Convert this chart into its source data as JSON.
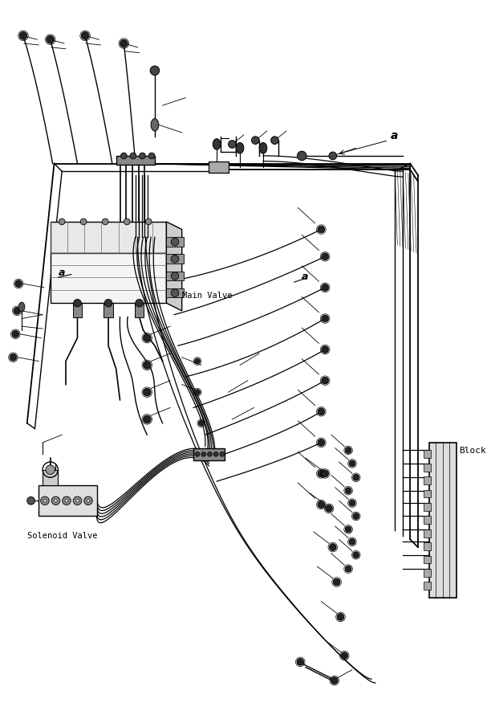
{
  "bg_color": "#ffffff",
  "line_color": "#000000",
  "fig_width": 6.07,
  "fig_height": 8.75,
  "dpi": 100,
  "label_main_valve": "Main Valve",
  "label_solenoid_valve": "Solenoid Valve",
  "label_block": "Block",
  "label_a_top": "a",
  "label_a_left": "a",
  "label_a_right": "a"
}
